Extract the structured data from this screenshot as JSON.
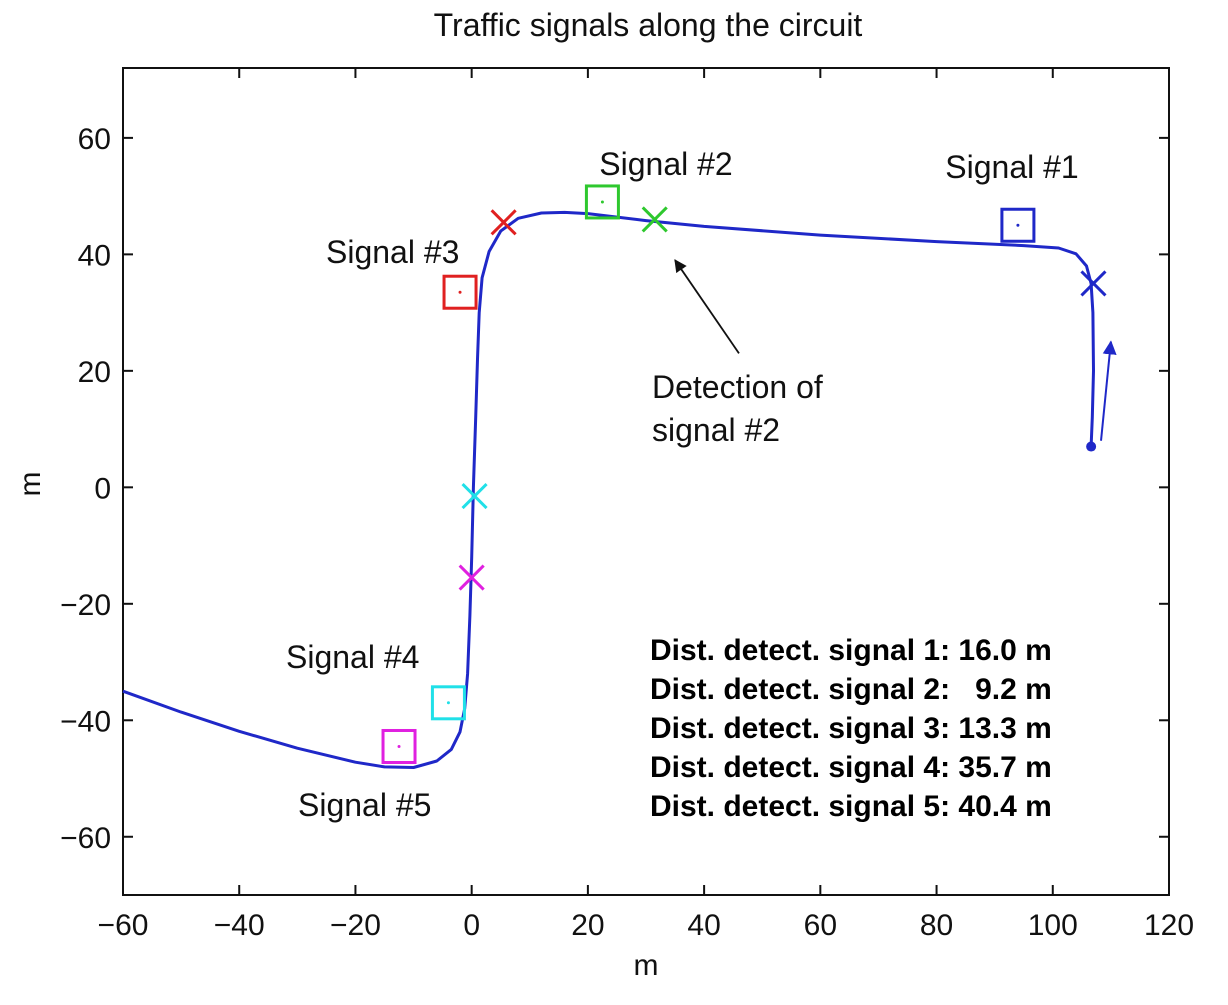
{
  "chart_data": {
    "type": "scatter",
    "title": "Traffic signals along the circuit",
    "xlabel": "m",
    "ylabel": "m",
    "xlim": [
      -60,
      120
    ],
    "ylim": [
      -70,
      72
    ],
    "xticks": [
      -60,
      -40,
      -20,
      0,
      20,
      40,
      60,
      80,
      100,
      120
    ],
    "yticks": [
      -60,
      -40,
      -20,
      0,
      20,
      40,
      60
    ],
    "xtick_labels": [
      "−60",
      "−40",
      "−20",
      "0",
      "20",
      "40",
      "60",
      "80",
      "100",
      "120"
    ],
    "ytick_labels": [
      "−60",
      "−40",
      "−20",
      "0",
      "20",
      "40",
      "60"
    ],
    "grid": false,
    "path_color": "#1f28c8",
    "trajectory": [
      [
        -60,
        -35
      ],
      [
        -50,
        -38.6
      ],
      [
        -40,
        -41.9
      ],
      [
        -30,
        -44.8
      ],
      [
        -20,
        -47.2
      ],
      [
        -15,
        -48
      ],
      [
        -10,
        -48.1
      ],
      [
        -6,
        -47
      ],
      [
        -3.5,
        -45
      ],
      [
        -2,
        -42
      ],
      [
        -1.2,
        -38
      ],
      [
        -0.7,
        -32
      ],
      [
        -0.3,
        -22
      ],
      [
        0,
        -12
      ],
      [
        0.3,
        0
      ],
      [
        0.7,
        12
      ],
      [
        1,
        22
      ],
      [
        1.3,
        30
      ],
      [
        1.8,
        36
      ],
      [
        3,
        40.5
      ],
      [
        5,
        44
      ],
      [
        8,
        46.2
      ],
      [
        12,
        47.1
      ],
      [
        16,
        47.2
      ],
      [
        20,
        47
      ],
      [
        30,
        45.8
      ],
      [
        40,
        44.8
      ],
      [
        60,
        43.3
      ],
      [
        80,
        42.2
      ],
      [
        95,
        41.5
      ],
      [
        101,
        41.1
      ],
      [
        104,
        40.1
      ],
      [
        105.8,
        38
      ],
      [
        106.6,
        35
      ],
      [
        106.9,
        30
      ],
      [
        107,
        20
      ],
      [
        106.8,
        12
      ],
      [
        106.6,
        7
      ]
    ],
    "start_point": [
      106.6,
      7
    ],
    "direction_arrow": {
      "from": [
        108.3,
        8
      ],
      "to": [
        110,
        25
      ]
    },
    "signals": [
      {
        "label": "Signal #1",
        "square": [
          94,
          45
        ],
        "detection": [
          107,
          35
        ],
        "color": "#1f28c8",
        "distance": "16.0 m"
      },
      {
        "label": "Signal #2",
        "square": [
          22.5,
          49
        ],
        "detection": [
          31.5,
          46
        ],
        "color": "#2ec82e",
        "distance": "9.2 m"
      },
      {
        "label": "Signal #3",
        "square": [
          -2,
          33.5
        ],
        "detection": [
          5.5,
          45.5
        ],
        "color": "#e02020",
        "distance": "13.3 m"
      },
      {
        "label": "Signal #4",
        "square": [
          -4,
          -37
        ],
        "detection": [
          0.5,
          -1.5
        ],
        "color": "#20e0e8",
        "distance": "35.7 m"
      },
      {
        "label": "Signal #5",
        "square": [
          -12.5,
          -44.5
        ],
        "detection": [
          0,
          -15.5
        ],
        "color": "#e020e0",
        "distance": "40.4 m"
      }
    ],
    "annotation": {
      "lines": [
        "Detection of",
        "signal #2"
      ],
      "arrow_from": [
        46,
        23
      ],
      "arrow_to": [
        35,
        39
      ]
    },
    "distance_prefix": "Dist. detect. signal ",
    "distance_lines": [
      "Dist. detect. signal 1: 16.0 m",
      "Dist. detect. signal 2:   9.2 m",
      "Dist. detect. signal 3: 13.3 m",
      "Dist. detect. signal 4: 35.7 m",
      "Dist. detect. signal 5: 40.4 m"
    ]
  }
}
